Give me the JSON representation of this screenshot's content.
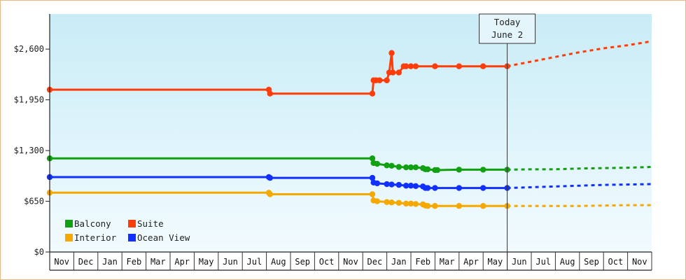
{
  "chart_data": {
    "type": "line",
    "title": "",
    "xlabel": "",
    "ylabel": "",
    "ylim": [
      0,
      3050
    ],
    "yticks": [
      {
        "value": 0,
        "label": "$0"
      },
      {
        "value": 650,
        "label": "$650"
      },
      {
        "value": 1300,
        "label": "$1,300"
      },
      {
        "value": 1950,
        "label": "$1,950"
      },
      {
        "value": 2600,
        "label": "$2,600"
      }
    ],
    "months": [
      "Nov",
      "Dec",
      "Jan",
      "Feb",
      "Mar",
      "Apr",
      "May",
      "Jun",
      "Jul",
      "Aug",
      "Sep",
      "Oct",
      "Nov",
      "Dec",
      "Jan",
      "Feb",
      "Mar",
      "Apr",
      "May",
      "Jun",
      "Jul",
      "Aug",
      "Sep",
      "Oct",
      "Nov"
    ],
    "today": {
      "line1": "Today",
      "line2": "June 2",
      "x": 19.0
    },
    "grid": false,
    "legend_position": "bottom-left",
    "colors": {
      "Balcony": "#11a011",
      "Suite": "#ff3d0a",
      "Interior": "#f5a800",
      "Ocean View": "#1030ff"
    },
    "series": [
      {
        "name": "Balcony",
        "points": [
          [
            0,
            1200
          ],
          [
            13.4,
            1200
          ],
          [
            13.45,
            1140
          ],
          [
            13.6,
            1130
          ],
          [
            14.0,
            1110
          ],
          [
            14.2,
            1105
          ],
          [
            14.5,
            1090
          ],
          [
            14.8,
            1085
          ],
          [
            15.0,
            1085
          ],
          [
            15.2,
            1085
          ],
          [
            15.5,
            1075
          ],
          [
            15.6,
            1060
          ],
          [
            15.7,
            1060
          ],
          [
            16.0,
            1050
          ],
          [
            16.1,
            1050
          ],
          [
            17.0,
            1055
          ],
          [
            18.0,
            1055
          ],
          [
            19.0,
            1055
          ]
        ],
        "projection": [
          [
            19.0,
            1055
          ],
          [
            20,
            1060
          ],
          [
            21,
            1060
          ],
          [
            22,
            1070
          ],
          [
            23,
            1075
          ],
          [
            24,
            1080
          ],
          [
            25,
            1090
          ]
        ]
      },
      {
        "name": "Suite",
        "points": [
          [
            0,
            2080
          ],
          [
            9.1,
            2080
          ],
          [
            9.15,
            2030
          ],
          [
            13.4,
            2030
          ],
          [
            13.45,
            2200
          ],
          [
            13.55,
            2200
          ],
          [
            13.7,
            2200
          ],
          [
            14.0,
            2200
          ],
          [
            14.1,
            2300
          ],
          [
            14.2,
            2550
          ],
          [
            14.25,
            2300
          ],
          [
            14.5,
            2300
          ],
          [
            14.7,
            2380
          ],
          [
            14.8,
            2380
          ],
          [
            15.0,
            2380
          ],
          [
            15.2,
            2380
          ],
          [
            16.0,
            2380
          ],
          [
            17.0,
            2380
          ],
          [
            18.0,
            2380
          ],
          [
            19.0,
            2380
          ]
        ],
        "projection": [
          [
            19.0,
            2380
          ],
          [
            20,
            2440
          ],
          [
            21,
            2500
          ],
          [
            22,
            2560
          ],
          [
            23,
            2610
          ],
          [
            24,
            2650
          ],
          [
            25,
            2700
          ]
        ]
      },
      {
        "name": "Interior",
        "points": [
          [
            0,
            760
          ],
          [
            9.1,
            760
          ],
          [
            9.15,
            740
          ],
          [
            13.4,
            740
          ],
          [
            13.45,
            660
          ],
          [
            13.6,
            650
          ],
          [
            14.0,
            640
          ],
          [
            14.2,
            635
          ],
          [
            14.5,
            630
          ],
          [
            14.8,
            620
          ],
          [
            15.0,
            620
          ],
          [
            15.2,
            615
          ],
          [
            15.5,
            610
          ],
          [
            15.6,
            595
          ],
          [
            15.7,
            590
          ],
          [
            16.0,
            590
          ],
          [
            17.0,
            590
          ],
          [
            18.0,
            590
          ],
          [
            19.0,
            590
          ]
        ],
        "projection": [
          [
            19.0,
            590
          ],
          [
            20,
            590
          ],
          [
            21,
            590
          ],
          [
            22,
            590
          ],
          [
            23,
            595
          ],
          [
            24,
            600
          ],
          [
            25,
            600
          ]
        ]
      },
      {
        "name": "Ocean View",
        "points": [
          [
            0,
            960
          ],
          [
            9.1,
            960
          ],
          [
            9.15,
            950
          ],
          [
            13.4,
            950
          ],
          [
            13.45,
            890
          ],
          [
            13.6,
            880
          ],
          [
            14.0,
            870
          ],
          [
            14.2,
            865
          ],
          [
            14.5,
            860
          ],
          [
            14.8,
            850
          ],
          [
            15.0,
            850
          ],
          [
            15.2,
            845
          ],
          [
            15.5,
            840
          ],
          [
            15.6,
            820
          ],
          [
            15.7,
            820
          ],
          [
            16.0,
            820
          ],
          [
            17.0,
            820
          ],
          [
            18.0,
            820
          ],
          [
            19.0,
            820
          ]
        ],
        "projection": [
          [
            19.0,
            820
          ],
          [
            20,
            830
          ],
          [
            21,
            840
          ],
          [
            22,
            850
          ],
          [
            23,
            860
          ],
          [
            24,
            865
          ],
          [
            25,
            870
          ]
        ]
      }
    ],
    "legend": [
      {
        "name": "Balcony"
      },
      {
        "name": "Suite"
      },
      {
        "name": "Interior"
      },
      {
        "name": "Ocean View"
      }
    ]
  }
}
